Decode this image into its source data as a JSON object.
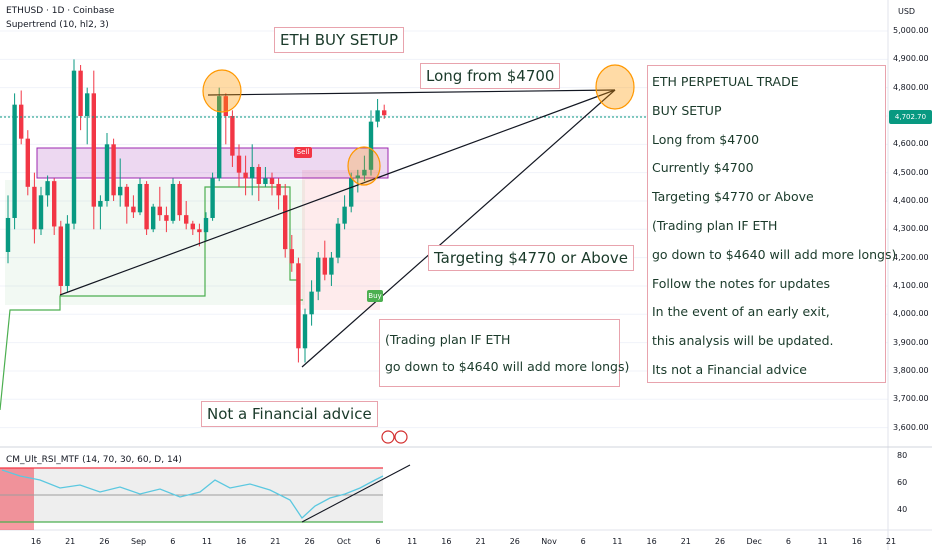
{
  "header": {
    "symbol": "ETHUSD · 1D · Coinbase",
    "indicator": "Supertrend (10, hl2, 3)",
    "currency": "USD"
  },
  "price_axis": {
    "ticks": [
      "5,000.00",
      "4,900.00",
      "4,800.00",
      "4,700.00",
      "4,600.00",
      "4,500.00",
      "4,400.00",
      "4,300.00",
      "4,200.00",
      "4,100.00",
      "4,000.00",
      "3,900.00",
      "3,800.00",
      "3,700.00",
      "3,600.00"
    ],
    "current_price": "4,702.70",
    "current_color": "#089981"
  },
  "time_axis": {
    "ticks": [
      "16",
      "21",
      "26",
      "Sep",
      "6",
      "11",
      "16",
      "21",
      "26",
      "Oct",
      "6",
      "11",
      "16",
      "21",
      "26",
      "Nov",
      "6",
      "11",
      "16",
      "21",
      "26",
      "Dec",
      "6",
      "11",
      "16",
      "21"
    ]
  },
  "rsi": {
    "label": "CM_Ult_RSI_MTF (14, 70, 30, 60, D, 14)",
    "ticks": [
      "80",
      "60",
      "40"
    ]
  },
  "annotations": {
    "title": "ETH BUY SETUP",
    "long_from": "Long from $4700",
    "targeting": "Targeting $4770 or Above",
    "plan_line1": "(Trading plan IF ETH",
    "plan_line2": "go down to $4640 will add more longs)",
    "disclaimer": "Not a Financial advice"
  },
  "trade_panel": {
    "lines": [
      "ETH PERPETUAL TRADE",
      "BUY SETUP",
      "Long from $4700",
      "Currently $4700",
      "Targeting $4770 or Above",
      "(Trading plan IF ETH",
      "go down to $4640 will add more longs)",
      "Follow the notes for updates",
      "In the event of an early exit,",
      "this analysis will be updated.",
      "Its not a Financial advice"
    ]
  },
  "signals": {
    "sell": "Sell",
    "buy": "Buy"
  },
  "colors": {
    "up": "#089981",
    "down": "#f23645",
    "supertrend_up": "#4caf50",
    "box": "#9c27b0",
    "rsi_line": "#5bc8e0"
  },
  "chart_data": {
    "type": "candlestick",
    "x": [
      "Aug 11",
      "Aug 12",
      "Aug 13",
      "Aug 14",
      "Aug 15",
      "Aug 16",
      "Aug 17",
      "Aug 18",
      "Aug 19",
      "Aug 20",
      "Aug 21",
      "Aug 22",
      "Aug 23",
      "Aug 24",
      "Aug 25",
      "Aug 26",
      "Aug 27",
      "Aug 28",
      "Aug 29",
      "Aug 30",
      "Aug 31",
      "Sep 1",
      "Sep 2",
      "Sep 3",
      "Sep 4",
      "Sep 5",
      "Sep 6",
      "Sep 7",
      "Sep 8",
      "Sep 9",
      "Sep 10",
      "Sep 11",
      "Sep 12",
      "Sep 13",
      "Sep 14",
      "Sep 15",
      "Sep 16",
      "Sep 17",
      "Sep 18",
      "Sep 19",
      "Sep 20",
      "Sep 21",
      "Sep 22",
      "Sep 23",
      "Sep 24",
      "Sep 25",
      "Sep 26",
      "Sep 27",
      "Sep 28",
      "Sep 29",
      "Sep 30",
      "Oct 1",
      "Oct 2",
      "Oct 3",
      "Oct 4",
      "Oct 5",
      "Oct 6",
      "Oct 7"
    ],
    "ohlc": [
      [
        4220,
        4420,
        4180,
        4340
      ],
      [
        4340,
        4780,
        4300,
        4740
      ],
      [
        4740,
        4790,
        4600,
        4620
      ],
      [
        4620,
        4650,
        4420,
        4450
      ],
      [
        4450,
        4500,
        4250,
        4300
      ],
      [
        4300,
        4450,
        4280,
        4420
      ],
      [
        4420,
        4490,
        4380,
        4470
      ],
      [
        4470,
        4480,
        4280,
        4310
      ],
      [
        4310,
        4330,
        4070,
        4100
      ],
      [
        4100,
        4350,
        4080,
        4320
      ],
      [
        4320,
        4900,
        4300,
        4860
      ],
      [
        4860,
        4880,
        4650,
        4700
      ],
      [
        4700,
        4800,
        4600,
        4780
      ],
      [
        4780,
        4860,
        4300,
        4380
      ],
      [
        4380,
        4420,
        4300,
        4400
      ],
      [
        4400,
        4640,
        4380,
        4600
      ],
      [
        4600,
        4620,
        4400,
        4420
      ],
      [
        4420,
        4550,
        4380,
        4450
      ],
      [
        4450,
        4460,
        4320,
        4380
      ],
      [
        4380,
        4420,
        4340,
        4360
      ],
      [
        4360,
        4480,
        4350,
        4460
      ],
      [
        4460,
        4470,
        4280,
        4300
      ],
      [
        4300,
        4390,
        4290,
        4380
      ],
      [
        4380,
        4450,
        4330,
        4350
      ],
      [
        4350,
        4380,
        4290,
        4330
      ],
      [
        4330,
        4480,
        4320,
        4460
      ],
      [
        4460,
        4470,
        4330,
        4350
      ],
      [
        4350,
        4400,
        4300,
        4320
      ],
      [
        4320,
        4330,
        4280,
        4300
      ],
      [
        4300,
        4320,
        4240,
        4290
      ],
      [
        4290,
        4360,
        4260,
        4340
      ],
      [
        4340,
        4500,
        4330,
        4480
      ],
      [
        4480,
        4800,
        4470,
        4770
      ],
      [
        4770,
        4780,
        4600,
        4700
      ],
      [
        4700,
        4720,
        4520,
        4560
      ],
      [
        4560,
        4600,
        4450,
        4500
      ],
      [
        4500,
        4560,
        4420,
        4480
      ],
      [
        4480,
        4600,
        4420,
        4520
      ],
      [
        4520,
        4530,
        4400,
        4460
      ],
      [
        4460,
        4520,
        4450,
        4480
      ],
      [
        4480,
        4500,
        4420,
        4460
      ],
      [
        4460,
        4480,
        4370,
        4420
      ],
      [
        4420,
        4460,
        4200,
        4230
      ],
      [
        4230,
        4280,
        4150,
        4180
      ],
      [
        4180,
        4200,
        3830,
        3880
      ],
      [
        3880,
        4020,
        3830,
        4000
      ],
      [
        4000,
        4120,
        3960,
        4080
      ],
      [
        4080,
        4220,
        4050,
        4200
      ],
      [
        4200,
        4260,
        4120,
        4140
      ],
      [
        4140,
        4220,
        4100,
        4200
      ],
      [
        4200,
        4340,
        4180,
        4320
      ],
      [
        4320,
        4420,
        4300,
        4380
      ],
      [
        4380,
        4500,
        4360,
        4480
      ],
      [
        4480,
        4510,
        4430,
        4490
      ],
      [
        4490,
        4560,
        4470,
        4510
      ],
      [
        4510,
        4720,
        4490,
        4680
      ],
      [
        4680,
        4760,
        4660,
        4720
      ],
      [
        4720,
        4740,
        4690,
        4702.7
      ]
    ]
  }
}
